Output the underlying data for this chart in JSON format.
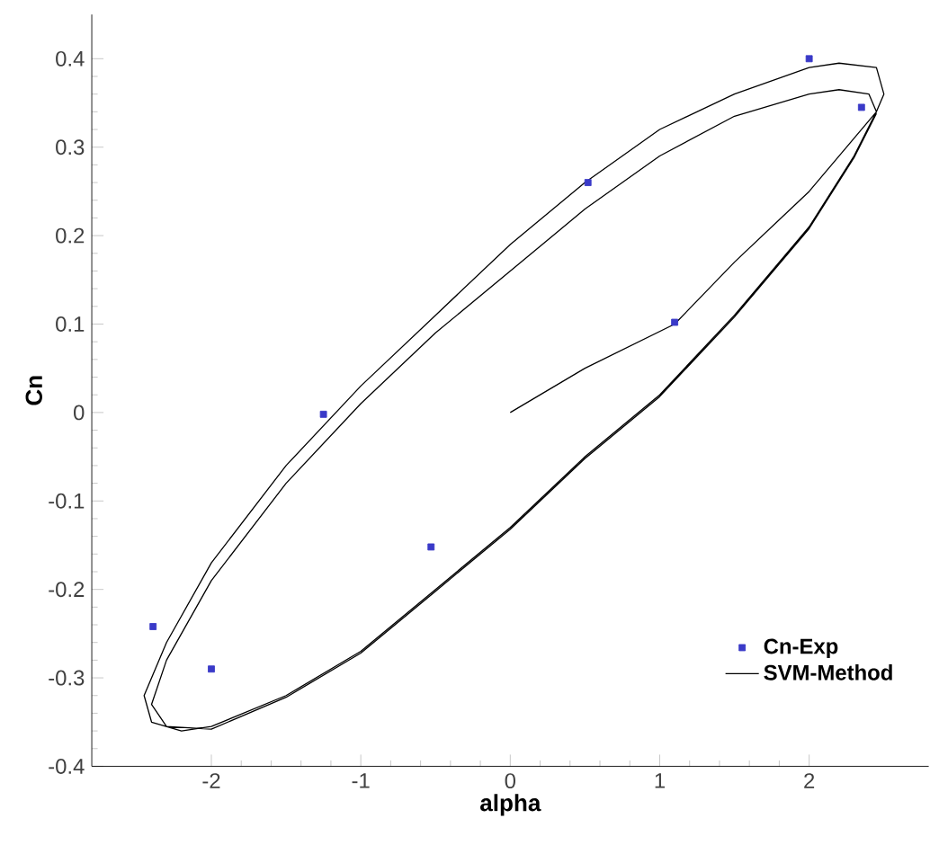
{
  "chart_data": {
    "type": "scatter",
    "xlabel": "alpha",
    "ylabel": "Cn",
    "xlim": [
      -2.8,
      2.8
    ],
    "ylim": [
      -0.4,
      0.45
    ],
    "xticks": [
      -2,
      -1,
      0,
      1,
      2
    ],
    "yticks": [
      -0.4,
      -0.3,
      -0.2,
      -0.1,
      0,
      0.1,
      0.2,
      0.3,
      0.4
    ],
    "grid": false,
    "legend": "bottom right",
    "series": [
      {
        "name": "Cn-Exp",
        "marker": "square",
        "color": "#3a3ac8",
        "x": [
          -2.39,
          -2.0,
          -1.25,
          -0.53,
          0.52,
          1.1,
          2.0,
          2.35
        ],
        "values": [
          -0.242,
          -0.29,
          -0.002,
          -0.152,
          0.26,
          0.102,
          0.4,
          0.345
        ]
      },
      {
        "name": "SVM-Method",
        "type": "line",
        "marker": "none",
        "line_style": "solid",
        "color": "#000000",
        "x": [
          0,
          0.5,
          1.1,
          1.5,
          2.0,
          2.3,
          2.45,
          2.5,
          2.45,
          2.2,
          2.0,
          1.5,
          1.0,
          0.5,
          0,
          -0.5,
          -1.0,
          -1.5,
          -2.0,
          -2.3,
          -2.45,
          -2.4,
          -2.2,
          -2.0,
          -1.5,
          -1.0,
          -0.5,
          0,
          0.5,
          1.0,
          1.5,
          2.0,
          2.3,
          2.45,
          2.4,
          2.2,
          2.0,
          1.5,
          1.0,
          0.5,
          0,
          -0.5,
          -1.0,
          -1.5,
          -2.0,
          -2.3,
          -2.4,
          -2.3,
          -2.0,
          -1.5,
          -1.0,
          -0.5,
          0,
          0.5,
          1.0,
          1.5,
          2.0,
          2.3,
          2.45
        ],
        "values": [
          0,
          0.05,
          0.1,
          0.17,
          0.25,
          0.31,
          0.34,
          0.36,
          0.39,
          0.395,
          0.39,
          0.36,
          0.32,
          0.26,
          0.19,
          0.11,
          0.03,
          -0.06,
          -0.17,
          -0.26,
          -0.32,
          -0.35,
          -0.36,
          -0.355,
          -0.32,
          -0.27,
          -0.2,
          -0.13,
          -0.05,
          0.02,
          0.11,
          0.21,
          0.29,
          0.34,
          0.36,
          0.365,
          0.36,
          0.335,
          0.29,
          0.23,
          0.16,
          0.09,
          0.01,
          -0.08,
          -0.19,
          -0.28,
          -0.33,
          -0.355,
          -0.358,
          -0.322,
          -0.272,
          -0.202,
          -0.132,
          -0.052,
          0.018,
          0.108,
          0.208,
          0.288,
          0.338
        ]
      }
    ]
  }
}
